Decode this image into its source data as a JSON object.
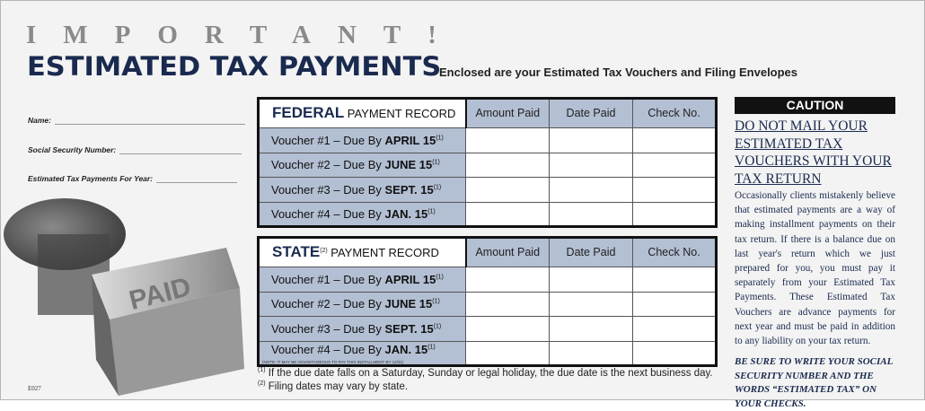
{
  "header": {
    "important": "IMPORTANT!",
    "title": "ESTIMATED TAX PAYMENTS",
    "subtitle": "Enclosed are your Estimated Tax Vouchers and Filing Envelopes"
  },
  "fields": [
    {
      "label": "Name:"
    },
    {
      "label": "Social Security Number:"
    },
    {
      "label": "Estimated Tax Payments For Year:"
    }
  ],
  "photo": {
    "stamp_text": "PAID"
  },
  "form_code": "E027",
  "columns": [
    "Amount Paid",
    "Date Paid",
    "Check No."
  ],
  "federal": {
    "title": "FEDERAL",
    "suffix": "PAYMENT RECORD",
    "rows": [
      {
        "prefix": "Voucher #1 – Due By ",
        "date": "APRIL 15",
        "note": "(1)"
      },
      {
        "prefix": "Voucher #2 – Due By ",
        "date": "JUNE 15",
        "note": "(1)"
      },
      {
        "prefix": "Voucher #3 – Due By ",
        "date": "SEPT. 15",
        "note": "(1)"
      },
      {
        "prefix": "Voucher #4 – Due By ",
        "date": "JAN. 15",
        "note": "(1)"
      }
    ]
  },
  "state": {
    "title": "STATE",
    "title_note": "(2)",
    "suffix": "PAYMENT RECORD",
    "rows": [
      {
        "prefix": "Voucher #1 – Due By ",
        "date": "APRIL 15",
        "note": "(1)"
      },
      {
        "prefix": "Voucher #2 – Due By ",
        "date": "JUNE 15",
        "note": "(1)"
      },
      {
        "prefix": "Voucher #3 – Due By ",
        "date": "SEPT. 15",
        "note": "(1)"
      },
      {
        "prefix": "Voucher #4 – Due By ",
        "date": "JAN. 15",
        "note": "(1)"
      }
    ],
    "row4_note": "(NOTE: IT MAY BE ADVANTAGEOUS TO PAY THIS INSTALLMENT BY 12/31)"
  },
  "footnotes": [
    {
      "mark": "(1)",
      "text": "If the due date falls on a Saturday, Sunday or legal holiday, the due date is the next business day."
    },
    {
      "mark": "(2)",
      "text": "Filing dates may vary by state."
    }
  ],
  "caution": {
    "heading": "CAUTION",
    "subheading": "DO NOT MAIL YOUR ESTIMATED TAX VOUCHERS WITH YOUR TAX RETURN",
    "body": "Occasionally clients mistakenly believe that estimated payments are a way of making installment payments on their tax return. If there is a balance due on last year's return which we just prepared for you, you must pay it separately from your Estimated Tax Payments. These Estimated Tax Vouchers are advance payments for next year and must be paid in addition to any liability on your tax return.",
    "reminder": "BE SURE TO WRITE YOUR SOCIAL SECURITY NUMBER AND THE WORDS “ESTIMATED TAX” ON YOUR CHECKS."
  },
  "colors": {
    "navy": "#1a2a4f",
    "row_fill": "#b3bfd3",
    "gray_heading": "#8a8a8a"
  }
}
